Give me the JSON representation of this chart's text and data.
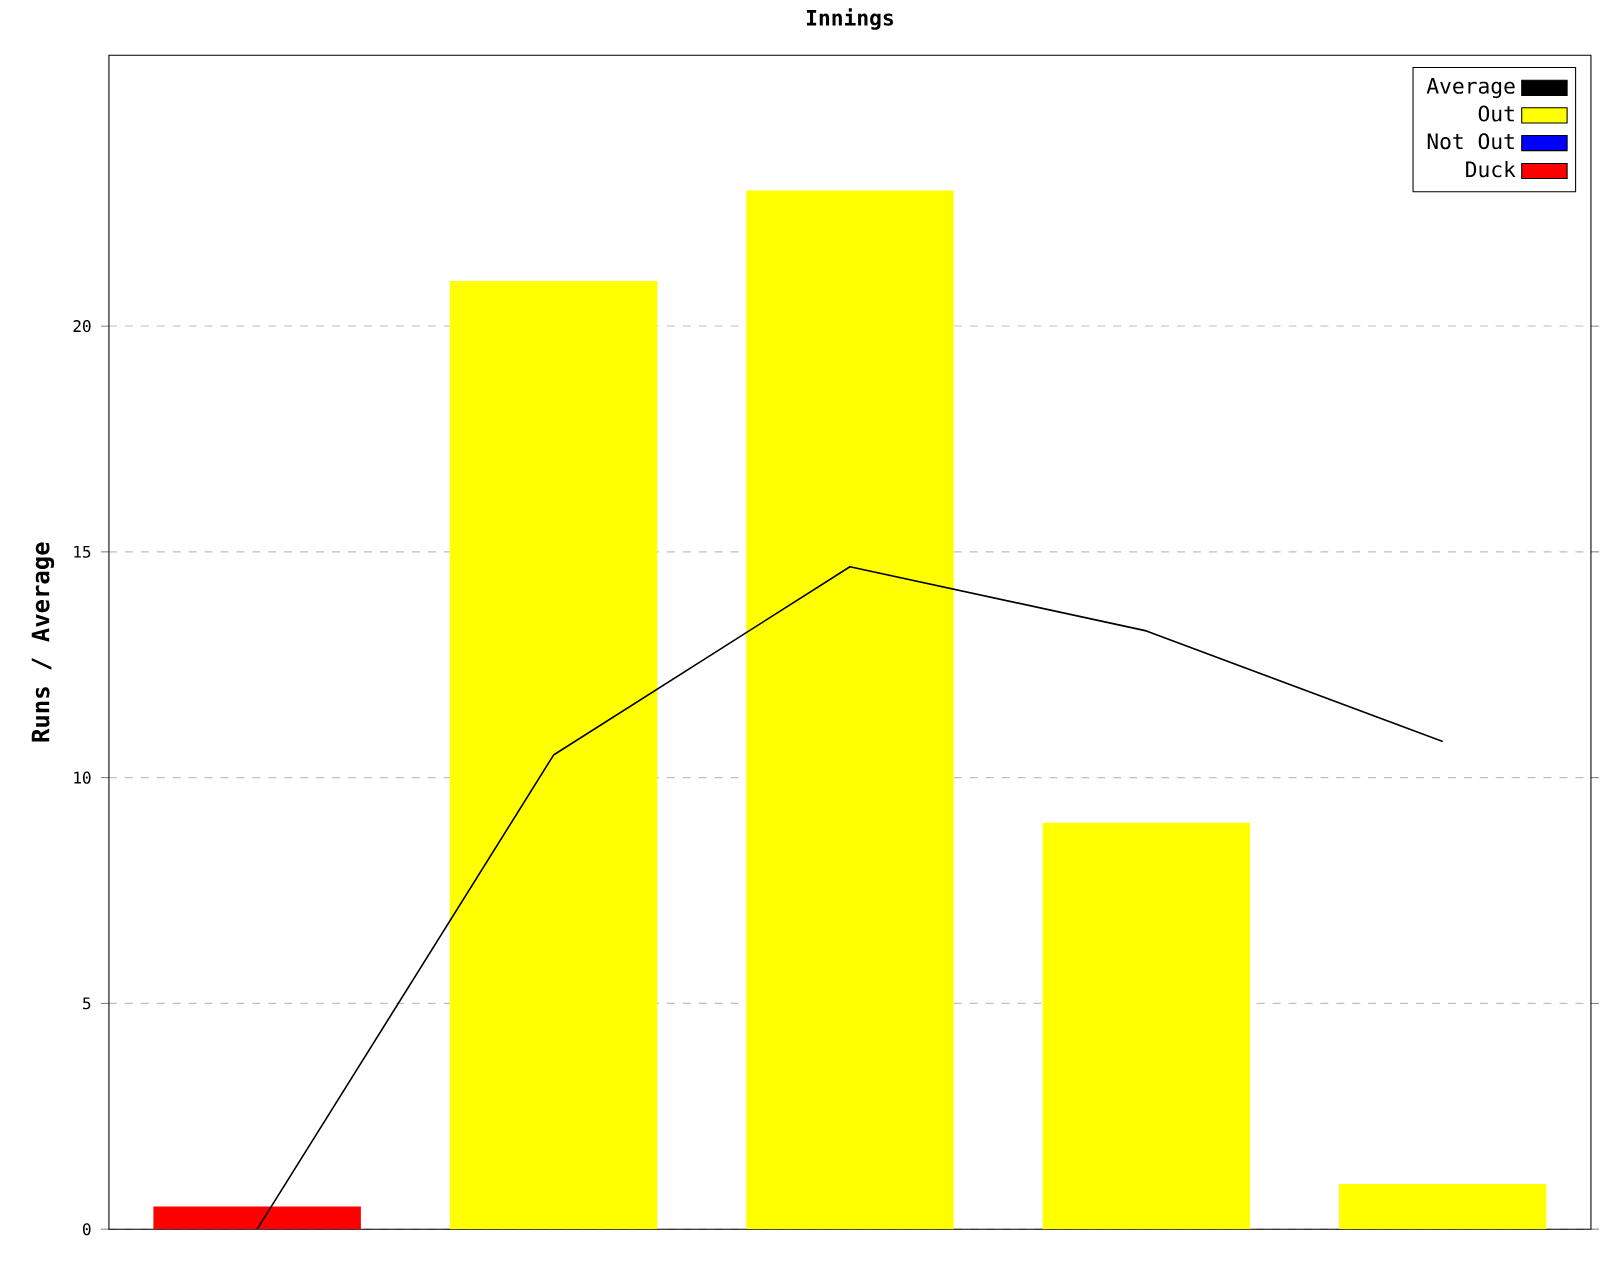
{
  "chart_data": {
    "type": "bar",
    "title": "Innings",
    "ylabel": "Runs / Average",
    "categories": [
      null,
      null,
      null,
      null,
      null
    ],
    "series": [
      {
        "name": "Average",
        "type": "line",
        "color": "#000000",
        "values": [
          0,
          10.5,
          14.67,
          13.25,
          10.8
        ]
      },
      {
        "name": "Out",
        "color": "#ffff00",
        "values": [
          null,
          21,
          23,
          9,
          1
        ]
      },
      {
        "name": "Not Out",
        "color": "#0000ff",
        "values": [
          null,
          null,
          null,
          null,
          null
        ]
      },
      {
        "name": "Duck",
        "color": "#ff0000",
        "values": [
          0.5,
          null,
          null,
          null,
          null
        ]
      }
    ],
    "ylim": [
      0,
      26
    ],
    "yticks": [
      0,
      5,
      10,
      15,
      20
    ],
    "grid": "y",
    "legend": "top right"
  }
}
